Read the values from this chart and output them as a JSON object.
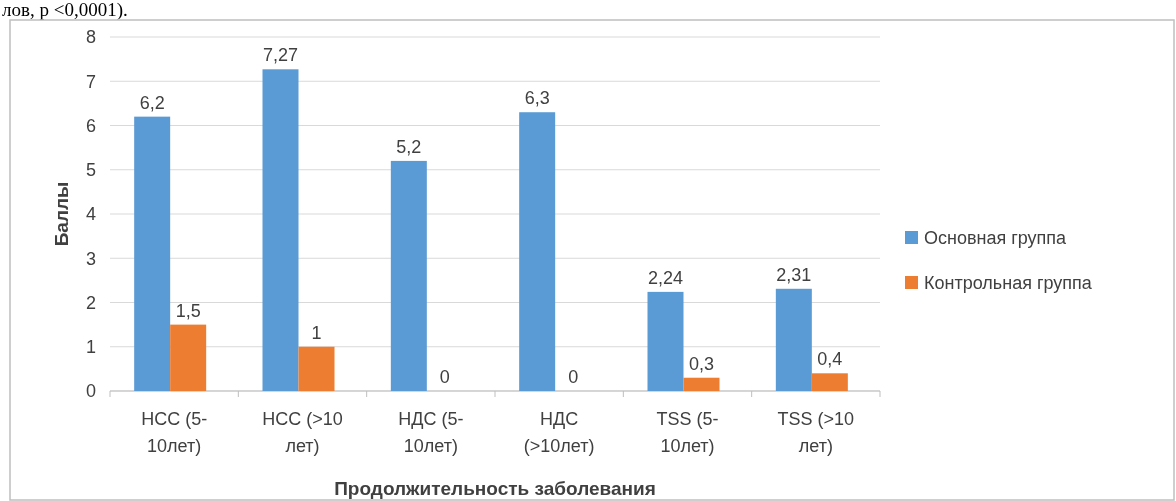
{
  "chart_data": {
    "type": "bar",
    "xlabel": "Продолжительность заболевания",
    "ylabel": "Баллы",
    "categories": [
      "НСС (5-10лет)",
      "НСС (>10 лет)",
      "НДС (5-10лет)",
      "НДС (>10лет)",
      "TSS (5-10лет)",
      "TSS (>10 лет)"
    ],
    "series": [
      {
        "name": "Основная группа",
        "color": "#5b9bd5",
        "values": [
          6.2,
          7.27,
          5.2,
          6.3,
          2.24,
          2.31
        ],
        "value_labels": [
          "6,2",
          "7,27",
          "5,2",
          "6,3",
          "2,24",
          "2,31"
        ]
      },
      {
        "name": "Контрольная группа",
        "color": "#ed7d31",
        "values": [
          1.5,
          1,
          0,
          0,
          0.3,
          0.4
        ],
        "value_labels": [
          "1,5",
          "1",
          "0",
          "0",
          "0,3",
          "0,4"
        ]
      }
    ],
    "ylim": [
      0,
      8
    ],
    "yticks": [
      0,
      1,
      2,
      3,
      4,
      5,
      6,
      7,
      8
    ],
    "grid": "y",
    "legend": "right",
    "annotations": [
      "лов, р <0,0001)."
    ]
  }
}
